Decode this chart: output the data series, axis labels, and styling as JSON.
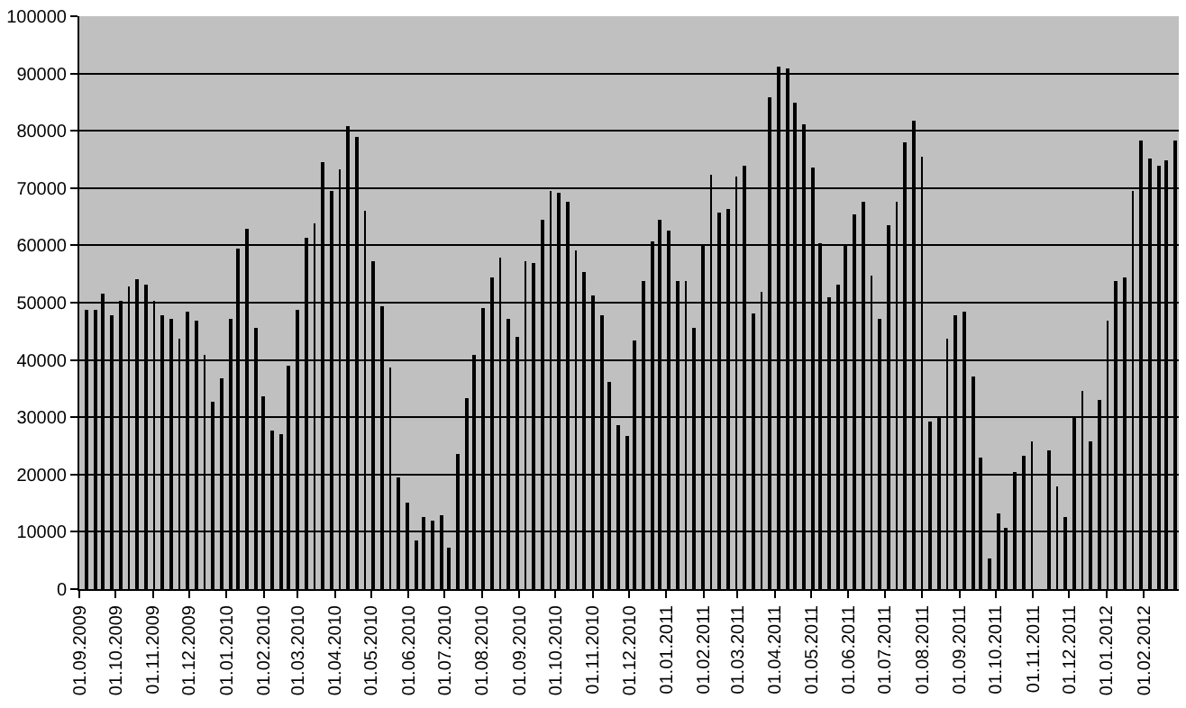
{
  "chart_data": {
    "type": "bar",
    "x": [
      "2009-09-07",
      "2009-09-14",
      "2009-09-21",
      "2009-09-28",
      "2009-10-05",
      "2009-10-12",
      "2009-10-19",
      "2009-10-26",
      "2009-11-02",
      "2009-11-09",
      "2009-11-16",
      "2009-11-23",
      "2009-11-30",
      "2009-12-07",
      "2009-12-14",
      "2009-12-21",
      "2009-12-28",
      "2010-01-04",
      "2010-01-11",
      "2010-01-18",
      "2010-01-25",
      "2010-02-01",
      "2010-02-08",
      "2010-02-15",
      "2010-02-22",
      "2010-03-01",
      "2010-03-08",
      "2010-03-15",
      "2010-03-22",
      "2010-03-29",
      "2010-04-05",
      "2010-04-12",
      "2010-04-19",
      "2010-04-26",
      "2010-05-03",
      "2010-05-10",
      "2010-05-17",
      "2010-05-24",
      "2010-05-31",
      "2010-06-07",
      "2010-06-14",
      "2010-06-21",
      "2010-06-28",
      "2010-07-05",
      "2010-07-12",
      "2010-07-19",
      "2010-07-26",
      "2010-08-02",
      "2010-08-09",
      "2010-08-16",
      "2010-08-23",
      "2010-08-30",
      "2010-09-06",
      "2010-09-13",
      "2010-09-20",
      "2010-09-27",
      "2010-10-04",
      "2010-10-11",
      "2010-10-18",
      "2010-10-25",
      "2010-11-01",
      "2010-11-08",
      "2010-11-15",
      "2010-11-22",
      "2010-11-29",
      "2010-12-06",
      "2010-12-13",
      "2010-12-20",
      "2010-12-27",
      "2011-01-03",
      "2011-01-10",
      "2011-01-17",
      "2011-01-24",
      "2011-01-31",
      "2011-02-07",
      "2011-02-14",
      "2011-02-21",
      "2011-02-28",
      "2011-03-07",
      "2011-03-14",
      "2011-03-21",
      "2011-03-28",
      "2011-04-04",
      "2011-04-11",
      "2011-04-18",
      "2011-04-25",
      "2011-05-02",
      "2011-05-09",
      "2011-05-16",
      "2011-05-23",
      "2011-05-30",
      "2011-06-06",
      "2011-06-13",
      "2011-06-20",
      "2011-06-27",
      "2011-07-04",
      "2011-07-11",
      "2011-07-18",
      "2011-07-25",
      "2011-08-01",
      "2011-08-08",
      "2011-08-15",
      "2011-08-22",
      "2011-08-29",
      "2011-09-05",
      "2011-09-12",
      "2011-09-19",
      "2011-09-26",
      "2011-10-03",
      "2011-10-10",
      "2011-10-17",
      "2011-10-24",
      "2011-10-31",
      "2011-11-07",
      "2011-11-14",
      "2011-11-21",
      "2011-11-28",
      "2011-12-05",
      "2011-12-12",
      "2011-12-19",
      "2011-12-26",
      "2012-01-02",
      "2012-01-09",
      "2012-01-16",
      "2012-01-23",
      "2012-01-30",
      "2012-02-06",
      "2012-02-13",
      "2012-02-20",
      "2012-02-27"
    ],
    "values": [
      48600,
      48600,
      51600,
      47800,
      50400,
      52900,
      54100,
      53100,
      50300,
      47700,
      47100,
      43700,
      48500,
      46800,
      41000,
      32600,
      36800,
      47100,
      59400,
      62900,
      45600,
      33500,
      27600,
      27100,
      39100,
      48900,
      61300,
      63700,
      74400,
      69500,
      73400,
      80700,
      78900,
      66100,
      57100,
      49300,
      38600,
      19400,
      15200,
      8600,
      12600,
      11900,
      12800,
      7300,
      23500,
      33200,
      40800,
      49000,
      54500,
      57800,
      47200,
      44100,
      57200,
      56800,
      64500,
      69500,
      69200,
      67700,
      59200,
      55400,
      51400,
      47700,
      36100,
      28600,
      26800,
      43500,
      53800,
      60800,
      64500,
      62700,
      53700,
      53700,
      45600,
      60100,
      72400,
      65800,
      66300,
      72100,
      73900,
      48000,
      52000,
      85700,
      91200,
      90800,
      85000,
      81100,
      73500,
      60400,
      51000,
      53100,
      60100,
      65300,
      67600,
      54800,
      47100,
      63500,
      67600,
      78100,
      81700,
      75600,
      29300,
      29800,
      43700,
      47700,
      48300,
      37000,
      23100,
      5300,
      13100,
      10600,
      20400,
      23200,
      25900,
      null,
      24300,
      18000,
      12600,
      29900,
      34600,
      25900,
      32900,
      46900,
      53700,
      54500,
      69600,
      78300,
      75300,
      73900,
      75000,
      78300
    ],
    "color": "#000000",
    "xlim": [
      "2009-09-01",
      "2012-03-01"
    ],
    "xticks": [
      {
        "value": "2009-09-01",
        "label": "01.09.2009"
      },
      {
        "value": "2009-10-01",
        "label": "01.10.2009"
      },
      {
        "value": "2009-11-01",
        "label": "01.11.2009"
      },
      {
        "value": "2009-12-01",
        "label": "01.12.2009"
      },
      {
        "value": "2010-01-01",
        "label": "01.01.2010"
      },
      {
        "value": "2010-02-01",
        "label": "01.02.2010"
      },
      {
        "value": "2010-03-01",
        "label": "01.03.2010"
      },
      {
        "value": "2010-04-01",
        "label": "01.04.2010"
      },
      {
        "value": "2010-05-01",
        "label": "01.05.2010"
      },
      {
        "value": "2010-06-01",
        "label": "01.06.2010"
      },
      {
        "value": "2010-07-01",
        "label": "01.07.2010"
      },
      {
        "value": "2010-08-01",
        "label": "01.08.2010"
      },
      {
        "value": "2010-09-01",
        "label": "01.09.2010"
      },
      {
        "value": "2010-10-01",
        "label": "01.10.2010"
      },
      {
        "value": "2010-11-01",
        "label": "01.11.2010"
      },
      {
        "value": "2010-12-01",
        "label": "01.12.2010"
      },
      {
        "value": "2011-01-01",
        "label": "01.01.2011"
      },
      {
        "value": "2011-02-01",
        "label": "01.02.2011"
      },
      {
        "value": "2011-03-01",
        "label": "01.03.2011"
      },
      {
        "value": "2011-04-01",
        "label": "01.04.2011"
      },
      {
        "value": "2011-05-01",
        "label": "01.05.2011"
      },
      {
        "value": "2011-06-01",
        "label": "01.06.2011"
      },
      {
        "value": "2011-07-01",
        "label": "01.07.2011"
      },
      {
        "value": "2011-08-01",
        "label": "01.08.2011"
      },
      {
        "value": "2011-09-01",
        "label": "01.09.2011"
      },
      {
        "value": "2011-10-01",
        "label": "01.10.2011"
      },
      {
        "value": "2011-11-01",
        "label": "01.11.2011"
      },
      {
        "value": "2011-12-01",
        "label": "01.12.2011"
      },
      {
        "value": "2012-01-01",
        "label": "01.01.2012"
      },
      {
        "value": "2012-02-01",
        "label": "01.02.2012"
      }
    ],
    "ylim": [
      0,
      100000
    ],
    "yticks": [
      0,
      10000,
      20000,
      30000,
      40000,
      50000,
      60000,
      70000,
      80000,
      90000,
      100000
    ],
    "grid": "y"
  }
}
